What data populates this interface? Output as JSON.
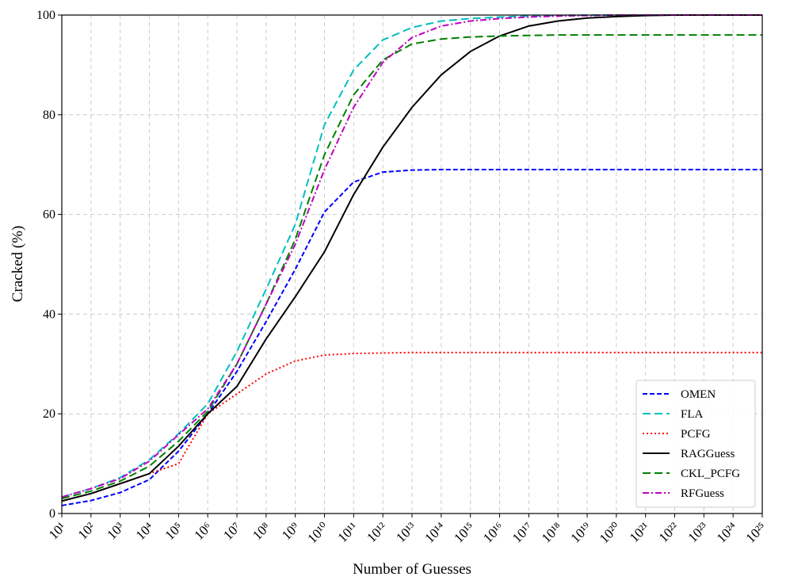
{
  "chart_data": {
    "type": "line",
    "xlabel": "Number of Guesses",
    "ylabel": "Cracked (%)",
    "x": [
      10.0,
      100.0,
      1000.0,
      10000.0,
      100000.0,
      1000000.0,
      10000000.0,
      100000000.0,
      1000000000.0,
      10000000000.0,
      100000000000.0,
      1000000000000.0,
      10000000000000.0,
      100000000000000.0,
      1000000000000000.0,
      1e+16,
      1e+17,
      1e+18,
      1e+19,
      1e+20,
      1e+21,
      1e+22,
      1e+23,
      1e+24,
      1e+25
    ],
    "xscale": "log",
    "xlim": [
      10.0,
      1e+25
    ],
    "xticks": [
      {
        "value": 10.0,
        "label": "10¹"
      },
      {
        "value": 100.0,
        "label": "10²"
      },
      {
        "value": 1000.0,
        "label": "10³"
      },
      {
        "value": 10000.0,
        "label": "10⁴"
      },
      {
        "value": 100000.0,
        "label": "10⁵"
      },
      {
        "value": 1000000.0,
        "label": "10⁶"
      },
      {
        "value": 10000000.0,
        "label": "10⁷"
      },
      {
        "value": 100000000.0,
        "label": "10⁸"
      },
      {
        "value": 1000000000.0,
        "label": "10⁹"
      },
      {
        "value": 10000000000.0,
        "label": "10¹⁰"
      },
      {
        "value": 100000000000.0,
        "label": "10¹¹"
      },
      {
        "value": 1000000000000.0,
        "label": "10¹²"
      },
      {
        "value": 10000000000000.0,
        "label": "10¹³"
      },
      {
        "value": 100000000000000.0,
        "label": "10¹⁴"
      },
      {
        "value": 1000000000000000.0,
        "label": "10¹⁵"
      },
      {
        "value": 1e+16,
        "label": "10¹⁶"
      },
      {
        "value": 1e+17,
        "label": "10¹⁷"
      },
      {
        "value": 1e+18,
        "label": "10¹⁸"
      },
      {
        "value": 1e+19,
        "label": "10¹⁹"
      },
      {
        "value": 1e+20,
        "label": "10²⁰"
      },
      {
        "value": 1e+21,
        "label": "10²¹"
      },
      {
        "value": 1e+22,
        "label": "10²²"
      },
      {
        "value": 1e+23,
        "label": "10²³"
      },
      {
        "value": 1e+24,
        "label": "10²⁴"
      },
      {
        "value": 1e+25,
        "label": "10²⁵"
      }
    ],
    "ylim": [
      0,
      100
    ],
    "yticks": [
      0,
      20,
      40,
      60,
      80,
      100
    ],
    "grid": true,
    "legend": "lower right",
    "series": [
      {
        "name": "OMEN",
        "color": "#0000ff",
        "linestyle": "dashed",
        "values": [
          1.6,
          2.6,
          4.2,
          6.8,
          12.5,
          20,
          28.5,
          38.5,
          49,
          60.5,
          66.5,
          68.5,
          68.9,
          69,
          69,
          69,
          69,
          69,
          69,
          69,
          69,
          69,
          69,
          69,
          69
        ]
      },
      {
        "name": "FLA",
        "color": "#00bfbf",
        "linestyle": "longdash",
        "values": [
          3.3,
          5,
          7.2,
          10.8,
          16,
          22,
          32.5,
          45,
          58,
          78,
          89,
          95,
          97.5,
          98.8,
          99.3,
          99.6,
          99.8,
          99.9,
          100,
          100,
          100,
          100,
          100,
          100,
          100
        ]
      },
      {
        "name": "PCFG",
        "color": "#ff0000",
        "linestyle": "dotted",
        "values": [
          2.5,
          4,
          6,
          8,
          10,
          20,
          24,
          28,
          30.6,
          31.8,
          32.1,
          32.2,
          32.3,
          32.3,
          32.3,
          32.3,
          32.3,
          32.3,
          32.3,
          32.3,
          32.3,
          32.3,
          32.3,
          32.3,
          32.3
        ]
      },
      {
        "name": "RAGGuess",
        "color": "#000000",
        "linestyle": "solid",
        "values": [
          2.5,
          4,
          6,
          8,
          13.5,
          20,
          25.5,
          35,
          43.5,
          52.5,
          64,
          73.5,
          81.5,
          88,
          92.7,
          95.8,
          97.8,
          98.8,
          99.4,
          99.7,
          99.9,
          100,
          100,
          100,
          100
        ]
      },
      {
        "name": "CKL_PCFG",
        "color": "#008000",
        "linestyle": "longdash",
        "values": [
          3,
          4.5,
          6.5,
          9.5,
          14.5,
          20.5,
          30,
          42,
          55,
          72,
          84,
          91,
          94.2,
          95.2,
          95.6,
          95.8,
          95.9,
          96,
          96,
          96,
          96,
          96,
          96,
          96,
          96
        ]
      },
      {
        "name": "RFGuess",
        "color": "#bf00bf",
        "linestyle": "dashdot",
        "values": [
          3.3,
          5,
          7,
          10.5,
          15.8,
          21,
          30,
          42,
          54,
          69,
          81.5,
          90.5,
          95.5,
          97.8,
          98.8,
          99.3,
          99.6,
          99.8,
          99.9,
          100,
          100,
          100,
          100,
          100,
          100
        ]
      }
    ]
  }
}
